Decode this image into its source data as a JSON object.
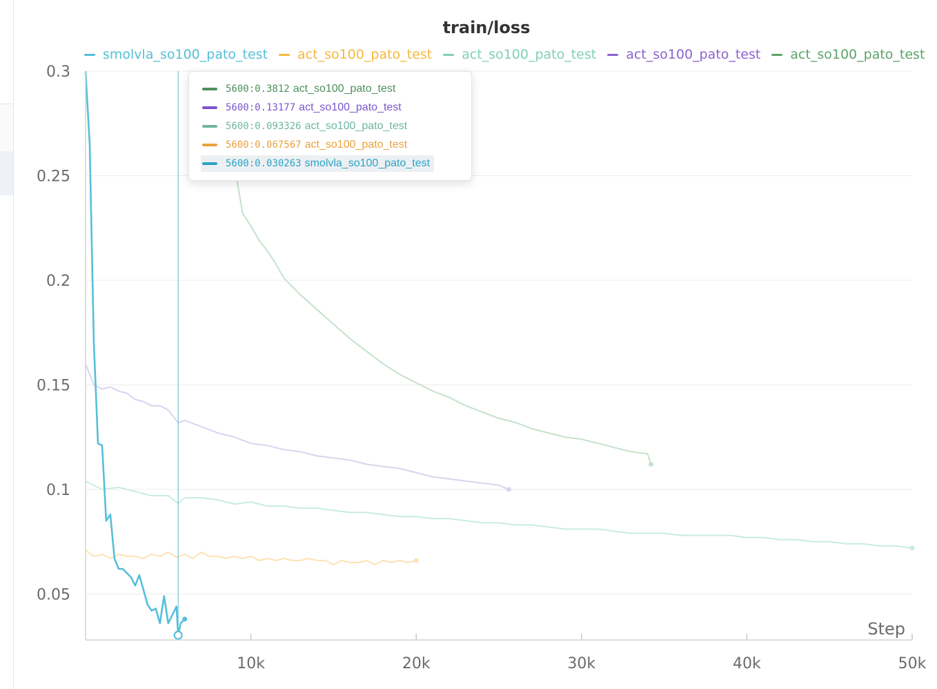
{
  "chart_data": {
    "type": "line",
    "title": "train/loss",
    "xlabel": "Step",
    "ylabel": "",
    "xlim": [
      0,
      50000
    ],
    "ylim": [
      0.028,
      0.3
    ],
    "x_ticks": [
      10000,
      20000,
      30000,
      40000,
      50000
    ],
    "x_tick_labels": [
      "10k",
      "20k",
      "30k",
      "40k",
      "50k"
    ],
    "y_ticks": [
      0.05,
      0.1,
      0.15,
      0.2,
      0.25,
      0.3
    ],
    "y_tick_labels": [
      "0.05",
      "0.1",
      "0.15",
      "0.2",
      "0.25",
      "0.3"
    ],
    "grid": true,
    "legend_position": "top",
    "hover_step": 5600,
    "series": [
      {
        "name": "smolvla_so100_pato_test",
        "color": "#55bfd9",
        "legend_color": "#55bfd9",
        "highlight": true,
        "x": [
          0,
          250,
          500,
          750,
          1000,
          1250,
          1500,
          1750,
          2000,
          2250,
          2500,
          2750,
          3000,
          3250,
          3500,
          3750,
          4000,
          4250,
          4500,
          4750,
          5000,
          5250,
          5500,
          5600,
          5750,
          6000
        ],
        "y": [
          0.3,
          0.265,
          0.17,
          0.122,
          0.121,
          0.085,
          0.088,
          0.067,
          0.062,
          0.062,
          0.06,
          0.058,
          0.054,
          0.059,
          0.052,
          0.045,
          0.042,
          0.043,
          0.036,
          0.049,
          0.036,
          0.04,
          0.044,
          0.030263,
          0.036,
          0.038
        ]
      },
      {
        "name": "act_so100_pato_test",
        "color": "#fde2b4",
        "legend_color": "#f5b83d",
        "highlight": false,
        "x": [
          0,
          500,
          1000,
          1500,
          2000,
          2500,
          3000,
          3500,
          4000,
          4500,
          5000,
          5500,
          6000,
          6500,
          7000,
          7500,
          8000,
          8500,
          9000,
          9500,
          10000,
          10500,
          11000,
          11500,
          12000,
          12500,
          13000,
          13500,
          14000,
          14500,
          15000,
          15500,
          16000,
          16500,
          17000,
          17500,
          18000,
          18500,
          19000,
          19500,
          20000
        ],
        "y": [
          0.071,
          0.068,
          0.069,
          0.067,
          0.069,
          0.068,
          0.068,
          0.067,
          0.069,
          0.068,
          0.07,
          0.0676,
          0.069,
          0.067,
          0.07,
          0.068,
          0.068,
          0.067,
          0.068,
          0.067,
          0.068,
          0.066,
          0.067,
          0.066,
          0.067,
          0.066,
          0.066,
          0.067,
          0.066,
          0.066,
          0.064,
          0.066,
          0.065,
          0.065,
          0.066,
          0.064,
          0.066,
          0.065,
          0.066,
          0.065,
          0.066
        ]
      },
      {
        "name": "act_so100_pato_test",
        "color": "#c9ece0",
        "legend_color": "#7fcfb9",
        "highlight": false,
        "x": [
          0,
          1000,
          2000,
          3000,
          4000,
          5000,
          5600,
          6000,
          7000,
          8000,
          9000,
          10000,
          11000,
          12000,
          13000,
          14000,
          15000,
          16000,
          17000,
          18000,
          19000,
          20000,
          21000,
          22000,
          23000,
          24000,
          25000,
          26000,
          27000,
          28000,
          29000,
          30000,
          31000,
          32000,
          33000,
          34000,
          35000,
          36000,
          37000,
          38000,
          39000,
          40000,
          41000,
          42000,
          43000,
          44000,
          45000,
          46000,
          47000,
          48000,
          49000,
          50000
        ],
        "y": [
          0.104,
          0.1,
          0.101,
          0.099,
          0.097,
          0.097,
          0.0933,
          0.096,
          0.096,
          0.095,
          0.093,
          0.094,
          0.092,
          0.092,
          0.091,
          0.091,
          0.09,
          0.089,
          0.089,
          0.088,
          0.087,
          0.087,
          0.086,
          0.086,
          0.085,
          0.084,
          0.084,
          0.083,
          0.083,
          0.082,
          0.081,
          0.081,
          0.081,
          0.08,
          0.079,
          0.079,
          0.079,
          0.078,
          0.078,
          0.078,
          0.078,
          0.077,
          0.077,
          0.076,
          0.076,
          0.075,
          0.075,
          0.074,
          0.074,
          0.073,
          0.073,
          0.072
        ]
      },
      {
        "name": "act_so100_pato_test",
        "color": "#dcd2ef",
        "legend_color": "#8b62cc",
        "highlight": false,
        "x": [
          0,
          500,
          1000,
          1500,
          2000,
          2500,
          3000,
          3500,
          4000,
          4500,
          5000,
          5600,
          6000,
          7000,
          8000,
          9000,
          10000,
          11000,
          12000,
          13000,
          14000,
          15000,
          16000,
          17000,
          18000,
          19000,
          20000,
          21000,
          22000,
          23000,
          24000,
          25000,
          25600
        ],
        "y": [
          0.16,
          0.15,
          0.148,
          0.149,
          0.147,
          0.146,
          0.143,
          0.142,
          0.14,
          0.14,
          0.138,
          0.1318,
          0.133,
          0.13,
          0.127,
          0.125,
          0.122,
          0.121,
          0.119,
          0.118,
          0.116,
          0.115,
          0.114,
          0.112,
          0.111,
          0.11,
          0.108,
          0.106,
          0.105,
          0.104,
          0.103,
          0.102,
          0.1
        ]
      },
      {
        "name": "act_so100_pato_test",
        "color": "#c6e1c9",
        "legend_color": "#5ca26a",
        "highlight": false,
        "x": [
          9000,
          9500,
          10000,
          10500,
          11000,
          11500,
          12000,
          13000,
          14000,
          15000,
          16000,
          17000,
          18000,
          19000,
          20000,
          21000,
          22000,
          23000,
          24000,
          25000,
          26000,
          27000,
          28000,
          29000,
          30000,
          31000,
          32000,
          33000,
          34000,
          34200
        ],
        "y": [
          0.255,
          0.232,
          0.226,
          0.219,
          0.214,
          0.208,
          0.201,
          0.193,
          0.186,
          0.179,
          0.172,
          0.166,
          0.16,
          0.155,
          0.151,
          0.147,
          0.144,
          0.14,
          0.137,
          0.134,
          0.132,
          0.129,
          0.127,
          0.125,
          0.124,
          0.122,
          0.12,
          0.118,
          0.117,
          0.112
        ]
      }
    ]
  },
  "tooltip": {
    "rows": [
      {
        "step": "5600",
        "value": "0.3812",
        "run": "act_so100_pato_test",
        "color": "#4e8f5c",
        "active": false
      },
      {
        "step": "5600",
        "value": "0.13177",
        "run": "act_so100_pato_test",
        "color": "#7b55cf",
        "active": false
      },
      {
        "step": "5600",
        "value": "0.093326",
        "run": "act_so100_pato_test",
        "color": "#6fb5a3",
        "active": false
      },
      {
        "step": "5600",
        "value": "0.067567",
        "run": "act_so100_pato_test",
        "color": "#e9a23b",
        "active": false
      },
      {
        "step": "5600",
        "value": "0.030263",
        "run": "smolvla_so100_pato_test",
        "color": "#2aa3c6",
        "active": true
      }
    ]
  }
}
